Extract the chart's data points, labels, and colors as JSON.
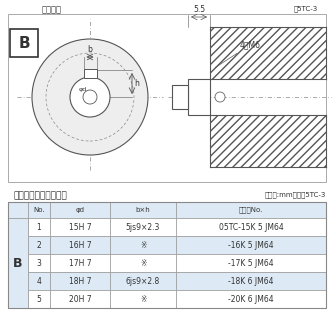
{
  "title_drawing": "軸穴形状",
  "fig_label": "図5TC-3",
  "table_title": "軸穴形状コードー覧表",
  "table_unit": "（単位:mm）　表5TC-3",
  "header": [
    "No.",
    "φd",
    "b×h",
    "コードNo."
  ],
  "col_b_label": "B",
  "rows": [
    [
      "1",
      "15H 7",
      "5js9×2.3",
      "05TC-15K 5 JM64"
    ],
    [
      "2",
      "16H 7",
      "※",
      "-16K 5 JM64"
    ],
    [
      "3",
      "17H 7",
      "※",
      "-17K 5 JM64"
    ],
    [
      "4",
      "18H 7",
      "6js9×2.8",
      "-18K 6 JM64"
    ],
    [
      "5",
      "20H 7",
      "※",
      "-20K 6 JM64"
    ]
  ],
  "bg_white": "#ffffff",
  "bg_light_blue": "#ddeaf5",
  "border_color": "#888888",
  "text_color": "#333333",
  "dim_color": "#555555"
}
